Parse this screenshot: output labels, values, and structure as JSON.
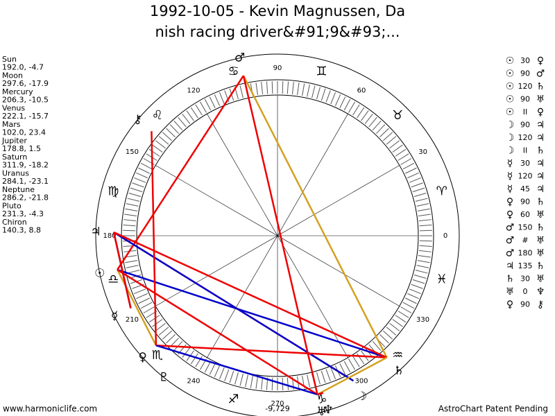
{
  "header": {
    "title_lines": [
      "1992-10-05 - Kevin Magnussen, Da",
      "nish racing driver&#91;9&#93;..."
    ]
  },
  "planets": [
    {
      "name": "Sun",
      "glyph": "☉",
      "position": "192.0, -4.7"
    },
    {
      "name": "Moon",
      "glyph": "☽",
      "position": "297.6, -17.9"
    },
    {
      "name": "Mercury",
      "glyph": "☿",
      "position": "206.3, -10.5"
    },
    {
      "name": "Venus",
      "glyph": "♀",
      "position": "222.1, -15.7"
    },
    {
      "name": "Mars",
      "glyph": "♂",
      "position": "102.0, 23.4"
    },
    {
      "name": "Jupiter",
      "glyph": "♃",
      "position": "178.8, 1.5"
    },
    {
      "name": "Saturn",
      "glyph": "♄",
      "position": "311.9, -18.2"
    },
    {
      "name": "Uranus",
      "glyph": "♅",
      "position": "284.1, -23.1"
    },
    {
      "name": "Neptune",
      "glyph": "♆",
      "position": "286.2, -21.8"
    },
    {
      "name": "Pluto",
      "glyph": "♇",
      "position": "231.3, -4.3"
    },
    {
      "name": "Chiron",
      "glyph": "⚷",
      "position": "140.3, 8.8"
    }
  ],
  "aspects": [
    {
      "p1": "☉",
      "aspect": "30",
      "p2": "♀"
    },
    {
      "p1": "☉",
      "aspect": "90",
      "p2": "♂"
    },
    {
      "p1": "☉",
      "aspect": "120",
      "p2": "♄"
    },
    {
      "p1": "☉",
      "aspect": "90",
      "p2": "♅"
    },
    {
      "p1": "☉",
      "aspect": "II",
      "p2": "♀"
    },
    {
      "p1": "☽",
      "aspect": "90",
      "p2": "♃"
    },
    {
      "p1": "☽",
      "aspect": "120",
      "p2": "♃"
    },
    {
      "p1": "☽",
      "aspect": "II",
      "p2": "♄"
    },
    {
      "p1": "☿",
      "aspect": "30",
      "p2": "♃"
    },
    {
      "p1": "☿",
      "aspect": "120",
      "p2": "♃"
    },
    {
      "p1": "☿",
      "aspect": "45",
      "p2": "♃"
    },
    {
      "p1": "♀",
      "aspect": "90",
      "p2": "♄"
    },
    {
      "p1": "♀",
      "aspect": "60",
      "p2": "♅"
    },
    {
      "p1": "♂",
      "aspect": "150",
      "p2": "♄"
    },
    {
      "p1": "♂",
      "aspect": "#",
      "p2": "♅"
    },
    {
      "p1": "♂",
      "aspect": "180",
      "p2": "♅"
    },
    {
      "p1": "♃",
      "aspect": "135",
      "p2": "♄"
    },
    {
      "p1": "♄",
      "aspect": "30",
      "p2": "♅"
    },
    {
      "p1": "♅",
      "aspect": "0",
      "p2": "♆"
    },
    {
      "p1": "♀",
      "aspect": "90",
      "p2": "⚷"
    }
  ],
  "signs": [
    "♈",
    "♉",
    "♊",
    "♋",
    "♌",
    "♍",
    "♎",
    "♏",
    "♐",
    "♑",
    "♒",
    "♓"
  ],
  "degree_labels": [
    "0",
    "30",
    "60",
    "90",
    "120",
    "150",
    "180",
    "210",
    "240",
    "270",
    "300",
    "330"
  ],
  "wheel_note": "-9,729",
  "footer": {
    "left": "www.harmoniclife.com",
    "right": "AstroChart Patent Pending"
  }
}
